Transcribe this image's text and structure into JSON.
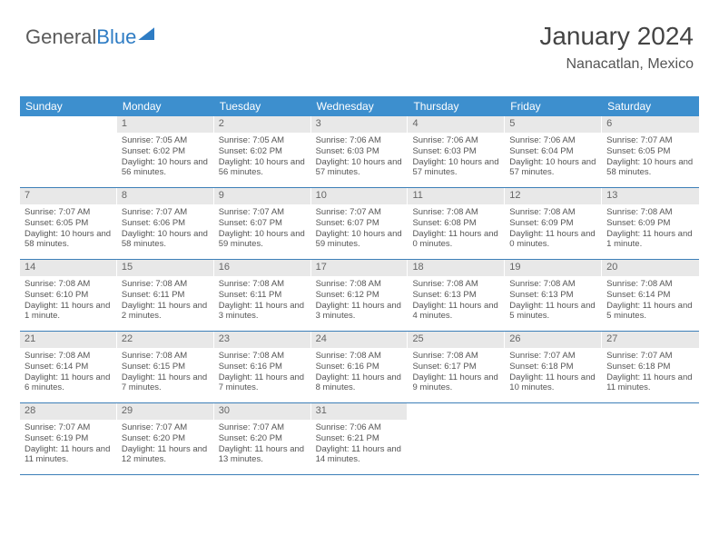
{
  "branding": {
    "word1": "General",
    "word2": "Blue"
  },
  "header": {
    "month_year": "January 2024",
    "location": "Nanacatlan, Mexico"
  },
  "colors": {
    "header_bg": "#3d8fce",
    "border": "#3d7fb8",
    "daynum_bg": "#e8e8e8",
    "text": "#555555"
  },
  "day_headers": [
    "Sunday",
    "Monday",
    "Tuesday",
    "Wednesday",
    "Thursday",
    "Friday",
    "Saturday"
  ],
  "weeks": [
    [
      {
        "n": "",
        "sr": "",
        "ss": "",
        "dl": ""
      },
      {
        "n": "1",
        "sr": "Sunrise: 7:05 AM",
        "ss": "Sunset: 6:02 PM",
        "dl": "Daylight: 10 hours and 56 minutes."
      },
      {
        "n": "2",
        "sr": "Sunrise: 7:05 AM",
        "ss": "Sunset: 6:02 PM",
        "dl": "Daylight: 10 hours and 56 minutes."
      },
      {
        "n": "3",
        "sr": "Sunrise: 7:06 AM",
        "ss": "Sunset: 6:03 PM",
        "dl": "Daylight: 10 hours and 57 minutes."
      },
      {
        "n": "4",
        "sr": "Sunrise: 7:06 AM",
        "ss": "Sunset: 6:03 PM",
        "dl": "Daylight: 10 hours and 57 minutes."
      },
      {
        "n": "5",
        "sr": "Sunrise: 7:06 AM",
        "ss": "Sunset: 6:04 PM",
        "dl": "Daylight: 10 hours and 57 minutes."
      },
      {
        "n": "6",
        "sr": "Sunrise: 7:07 AM",
        "ss": "Sunset: 6:05 PM",
        "dl": "Daylight: 10 hours and 58 minutes."
      }
    ],
    [
      {
        "n": "7",
        "sr": "Sunrise: 7:07 AM",
        "ss": "Sunset: 6:05 PM",
        "dl": "Daylight: 10 hours and 58 minutes."
      },
      {
        "n": "8",
        "sr": "Sunrise: 7:07 AM",
        "ss": "Sunset: 6:06 PM",
        "dl": "Daylight: 10 hours and 58 minutes."
      },
      {
        "n": "9",
        "sr": "Sunrise: 7:07 AM",
        "ss": "Sunset: 6:07 PM",
        "dl": "Daylight: 10 hours and 59 minutes."
      },
      {
        "n": "10",
        "sr": "Sunrise: 7:07 AM",
        "ss": "Sunset: 6:07 PM",
        "dl": "Daylight: 10 hours and 59 minutes."
      },
      {
        "n": "11",
        "sr": "Sunrise: 7:08 AM",
        "ss": "Sunset: 6:08 PM",
        "dl": "Daylight: 11 hours and 0 minutes."
      },
      {
        "n": "12",
        "sr": "Sunrise: 7:08 AM",
        "ss": "Sunset: 6:09 PM",
        "dl": "Daylight: 11 hours and 0 minutes."
      },
      {
        "n": "13",
        "sr": "Sunrise: 7:08 AM",
        "ss": "Sunset: 6:09 PM",
        "dl": "Daylight: 11 hours and 1 minute."
      }
    ],
    [
      {
        "n": "14",
        "sr": "Sunrise: 7:08 AM",
        "ss": "Sunset: 6:10 PM",
        "dl": "Daylight: 11 hours and 1 minute."
      },
      {
        "n": "15",
        "sr": "Sunrise: 7:08 AM",
        "ss": "Sunset: 6:11 PM",
        "dl": "Daylight: 11 hours and 2 minutes."
      },
      {
        "n": "16",
        "sr": "Sunrise: 7:08 AM",
        "ss": "Sunset: 6:11 PM",
        "dl": "Daylight: 11 hours and 3 minutes."
      },
      {
        "n": "17",
        "sr": "Sunrise: 7:08 AM",
        "ss": "Sunset: 6:12 PM",
        "dl": "Daylight: 11 hours and 3 minutes."
      },
      {
        "n": "18",
        "sr": "Sunrise: 7:08 AM",
        "ss": "Sunset: 6:13 PM",
        "dl": "Daylight: 11 hours and 4 minutes."
      },
      {
        "n": "19",
        "sr": "Sunrise: 7:08 AM",
        "ss": "Sunset: 6:13 PM",
        "dl": "Daylight: 11 hours and 5 minutes."
      },
      {
        "n": "20",
        "sr": "Sunrise: 7:08 AM",
        "ss": "Sunset: 6:14 PM",
        "dl": "Daylight: 11 hours and 5 minutes."
      }
    ],
    [
      {
        "n": "21",
        "sr": "Sunrise: 7:08 AM",
        "ss": "Sunset: 6:14 PM",
        "dl": "Daylight: 11 hours and 6 minutes."
      },
      {
        "n": "22",
        "sr": "Sunrise: 7:08 AM",
        "ss": "Sunset: 6:15 PM",
        "dl": "Daylight: 11 hours and 7 minutes."
      },
      {
        "n": "23",
        "sr": "Sunrise: 7:08 AM",
        "ss": "Sunset: 6:16 PM",
        "dl": "Daylight: 11 hours and 7 minutes."
      },
      {
        "n": "24",
        "sr": "Sunrise: 7:08 AM",
        "ss": "Sunset: 6:16 PM",
        "dl": "Daylight: 11 hours and 8 minutes."
      },
      {
        "n": "25",
        "sr": "Sunrise: 7:08 AM",
        "ss": "Sunset: 6:17 PM",
        "dl": "Daylight: 11 hours and 9 minutes."
      },
      {
        "n": "26",
        "sr": "Sunrise: 7:07 AM",
        "ss": "Sunset: 6:18 PM",
        "dl": "Daylight: 11 hours and 10 minutes."
      },
      {
        "n": "27",
        "sr": "Sunrise: 7:07 AM",
        "ss": "Sunset: 6:18 PM",
        "dl": "Daylight: 11 hours and 11 minutes."
      }
    ],
    [
      {
        "n": "28",
        "sr": "Sunrise: 7:07 AM",
        "ss": "Sunset: 6:19 PM",
        "dl": "Daylight: 11 hours and 11 minutes."
      },
      {
        "n": "29",
        "sr": "Sunrise: 7:07 AM",
        "ss": "Sunset: 6:20 PM",
        "dl": "Daylight: 11 hours and 12 minutes."
      },
      {
        "n": "30",
        "sr": "Sunrise: 7:07 AM",
        "ss": "Sunset: 6:20 PM",
        "dl": "Daylight: 11 hours and 13 minutes."
      },
      {
        "n": "31",
        "sr": "Sunrise: 7:06 AM",
        "ss": "Sunset: 6:21 PM",
        "dl": "Daylight: 11 hours and 14 minutes."
      },
      {
        "n": "",
        "sr": "",
        "ss": "",
        "dl": ""
      },
      {
        "n": "",
        "sr": "",
        "ss": "",
        "dl": ""
      },
      {
        "n": "",
        "sr": "",
        "ss": "",
        "dl": ""
      }
    ]
  ]
}
